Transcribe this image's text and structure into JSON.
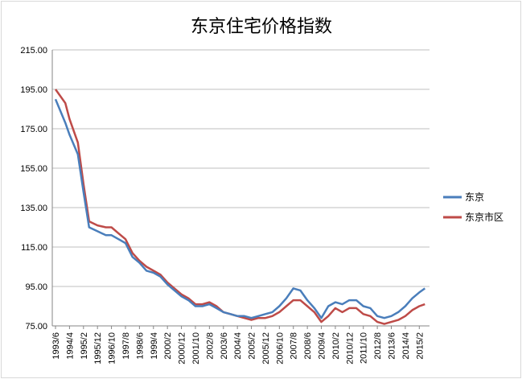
{
  "chart_data": {
    "type": "line",
    "title": "东京住宅价格指数",
    "xlabel": "",
    "ylabel": "",
    "ylim": [
      75,
      215
    ],
    "yticks": [
      "215.00",
      "195.00",
      "175.00",
      "155.00",
      "135.00",
      "115.00",
      "95.00",
      "75.00"
    ],
    "grid": true,
    "legend_position": "right",
    "x_tick_labels": [
      "1993/6",
      "1994/4",
      "1995/2",
      "1995/12",
      "1996/10",
      "1997/8",
      "1998/6",
      "1999/4",
      "2000/2",
      "2000/12",
      "2001/10",
      "2002/8",
      "2003/6",
      "2004/4",
      "2005/2",
      "2005/12",
      "2006/10",
      "2007/8",
      "2008/6",
      "2009/4",
      "2010/2",
      "2010/12",
      "2011/10",
      "2012/8",
      "2013/6",
      "2014/4",
      "2015/2"
    ],
    "x": [
      "1993/6",
      "1994/1",
      "1994/4",
      "1994/10",
      "1995/2",
      "1995/6",
      "1995/12",
      "1996/6",
      "1996/10",
      "1997/3",
      "1997/8",
      "1998/1",
      "1998/6",
      "1998/11",
      "1999/4",
      "1999/9",
      "2000/2",
      "2000/7",
      "2000/12",
      "2001/5",
      "2001/10",
      "2002/3",
      "2002/8",
      "2003/1",
      "2003/6",
      "2003/11",
      "2004/4",
      "2004/9",
      "2005/2",
      "2005/7",
      "2005/12",
      "2006/5",
      "2006/10",
      "2007/3",
      "2007/8",
      "2008/1",
      "2008/6",
      "2008/11",
      "2009/4",
      "2009/9",
      "2010/2",
      "2010/7",
      "2010/12",
      "2011/5",
      "2011/10",
      "2012/3",
      "2012/8",
      "2013/1",
      "2013/6",
      "2013/11",
      "2014/4",
      "2014/9",
      "2015/2",
      "2015/6"
    ],
    "series": [
      {
        "name": "东京",
        "color": "#4a7ebb",
        "values": [
          190,
          178,
          172,
          162,
          143,
          125,
          123,
          121,
          121,
          119,
          117,
          110,
          107,
          103,
          102,
          100,
          96,
          93,
          90,
          88,
          85,
          85,
          86,
          84,
          82,
          81,
          80,
          80,
          79,
          80,
          81,
          82,
          85,
          89,
          94,
          93,
          88,
          84,
          79,
          85,
          87,
          86,
          88,
          88,
          85,
          84,
          80,
          79,
          80,
          82,
          85,
          89,
          92,
          94
        ]
      },
      {
        "name": "东京市区",
        "color": "#be4b48",
        "values": [
          195,
          188,
          180,
          168,
          147,
          128,
          126,
          125,
          125,
          122,
          119,
          112,
          108,
          105,
          103,
          101,
          97,
          94,
          91,
          89,
          86,
          86,
          87,
          85,
          82,
          81,
          80,
          79,
          78,
          79,
          79,
          80,
          82,
          85,
          88,
          88,
          85,
          82,
          77,
          80,
          84,
          82,
          84,
          84,
          81,
          80,
          77,
          76,
          77,
          78,
          80,
          83,
          85,
          86
        ]
      }
    ]
  }
}
